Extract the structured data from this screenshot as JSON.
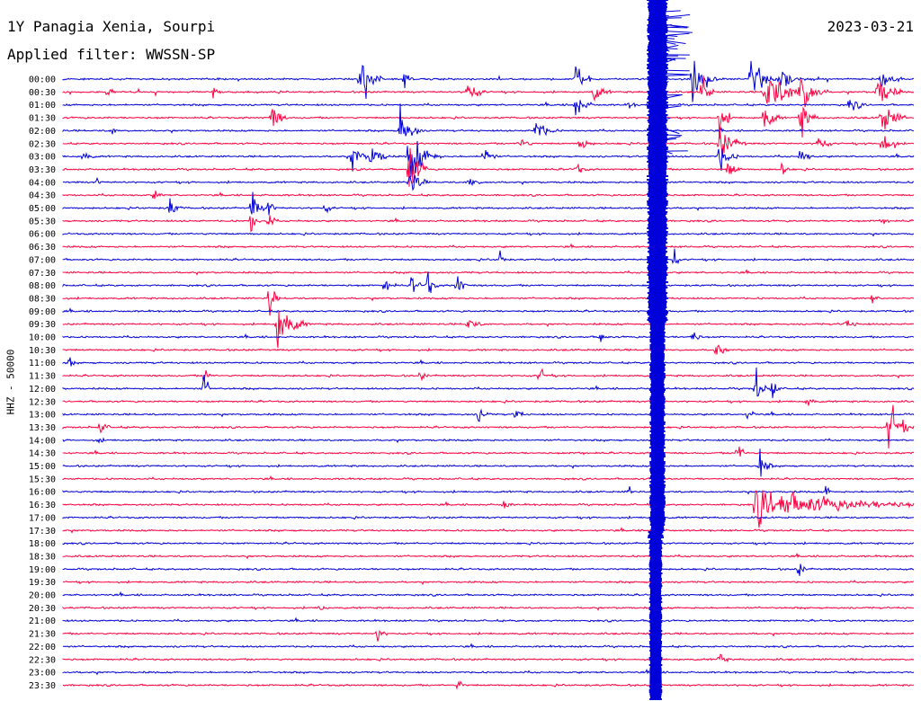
{
  "header": {
    "station": "1Y Panagia Xenia, Sourpi",
    "date": "2023-03-21",
    "filter": "Applied filter: WWSSN-SP"
  },
  "chart_data": {
    "type": "line",
    "plot_kind": "helicorder",
    "ylabel": "HHZ - 50000",
    "colors": [
      "#0000d8",
      "#ff0040"
    ],
    "row_labels": [
      "00:00",
      "00:30",
      "01:00",
      "01:30",
      "02:00",
      "02:30",
      "03:00",
      "03:30",
      "04:00",
      "04:30",
      "05:00",
      "05:30",
      "06:00",
      "06:30",
      "07:00",
      "07:30",
      "08:00",
      "08:30",
      "09:00",
      "09:30",
      "10:00",
      "10:30",
      "11:00",
      "11:30",
      "12:00",
      "12:30",
      "13:00",
      "13:30",
      "14:00",
      "14:30",
      "15:00",
      "15:30",
      "16:00",
      "16:30",
      "17:00",
      "17:30",
      "18:00",
      "18:30",
      "19:00",
      "19:30",
      "20:00",
      "20:30",
      "21:00",
      "21:30",
      "22:00",
      "22:30",
      "23:00",
      "23:30"
    ],
    "grid": false
  }
}
